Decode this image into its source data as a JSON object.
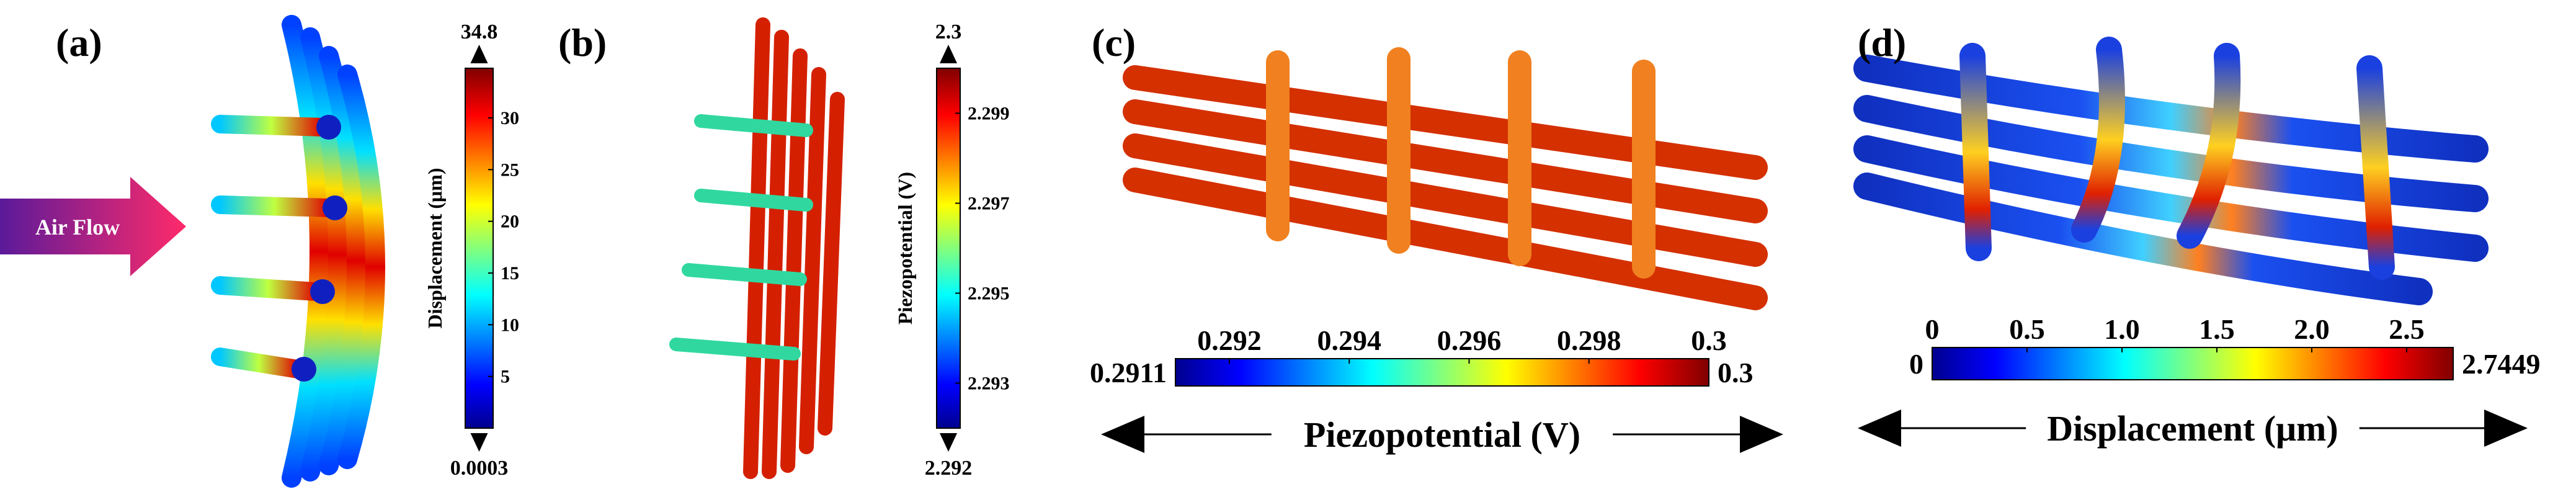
{
  "panels": [
    {
      "label": "(a)",
      "arrow": "Air Flow",
      "colorbar": {
        "title": "Displacement (μm)",
        "max": "34.8",
        "min": "0.0003",
        "ticks": [
          "5",
          "10",
          "15",
          "20",
          "25",
          "30"
        ]
      }
    },
    {
      "label": "(b)",
      "colorbar": {
        "title": "Piezopotential (V)",
        "max": "2.3",
        "min": "2.292",
        "ticks": [
          "2.293",
          "2.295",
          "2.297",
          "2.299"
        ]
      }
    },
    {
      "label": "(c)",
      "colorbar": {
        "title": "Piezopotential (V)",
        "max": "0.3",
        "min": "0.2911",
        "ticks": [
          "0.292",
          "0.294",
          "0.296",
          "0.298",
          "0.3"
        ]
      }
    },
    {
      "label": "(d)",
      "colorbar": {
        "title": "Displacement (μm)",
        "max": "2.7449",
        "min": "0",
        "ticks": [
          "0",
          "0.5",
          "1.0",
          "1.5",
          "2.0",
          "2.5"
        ]
      }
    }
  ]
}
